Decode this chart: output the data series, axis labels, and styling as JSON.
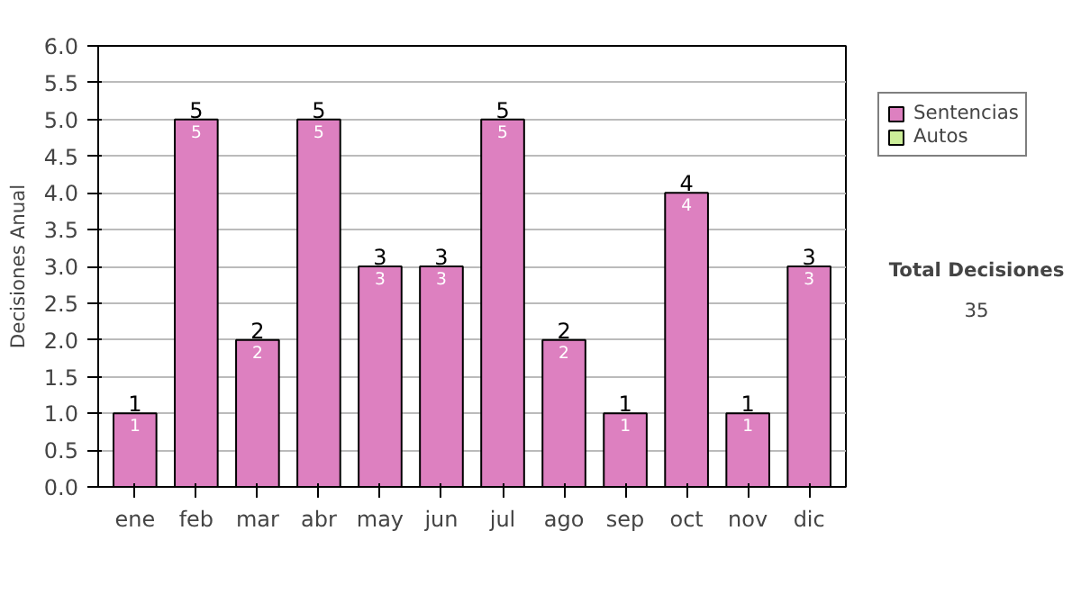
{
  "chart_data": {
    "type": "bar",
    "stacked": true,
    "ylabel": "Decisiones Anual",
    "categories": [
      "ene",
      "feb",
      "mar",
      "abr",
      "may",
      "jun",
      "jul",
      "ago",
      "sep",
      "oct",
      "nov",
      "dic"
    ],
    "series": [
      {
        "name": "Sentencias",
        "color": "#dd80c0",
        "values": [
          1,
          5,
          2,
          5,
          3,
          3,
          5,
          2,
          1,
          4,
          1,
          3
        ],
        "value_labels": [
          "1",
          "5",
          "2",
          "5",
          "3",
          "3",
          "5",
          "2",
          "1",
          "4",
          "1",
          "3"
        ]
      },
      {
        "name": "Autos",
        "color": "#ccee99",
        "values": [
          null,
          null,
          null,
          null,
          null,
          null,
          null,
          null,
          null,
          null,
          null,
          null
        ]
      }
    ],
    "totals": [
      "1",
      "5",
      "2",
      "5",
      "3",
      "3",
      "5",
      "2",
      "1",
      "4",
      "1",
      "3"
    ],
    "ylim": [
      0,
      6
    ],
    "yticks": [
      "0.0",
      "0.5",
      "1.0",
      "1.5",
      "2.0",
      "2.5",
      "3.0",
      "3.5",
      "4.0",
      "4.5",
      "5.0",
      "5.5",
      "6.0"
    ],
    "grid": "y",
    "legend": "right",
    "annotations": [
      "Total Decisiones",
      "35"
    ]
  }
}
